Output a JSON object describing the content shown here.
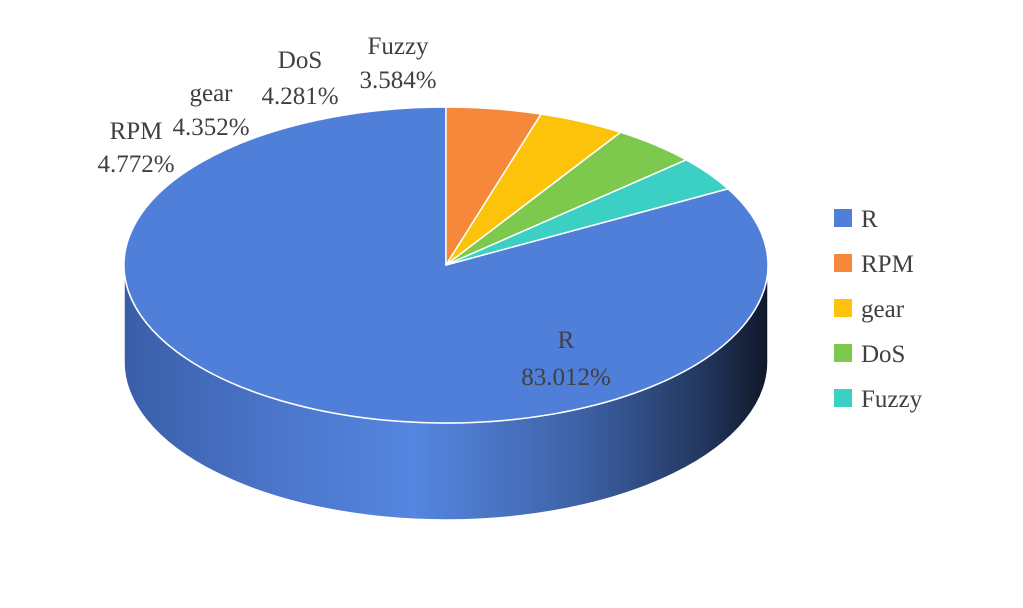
{
  "chart_data": {
    "type": "pie",
    "style": "3d",
    "categories": [
      "R",
      "RPM",
      "gear",
      "DoS",
      "Fuzzy"
    ],
    "values": [
      83.012,
      4.772,
      4.352,
      4.281,
      3.584
    ],
    "value_labels": [
      "83.012%",
      "4.772%",
      "4.352%",
      "4.281%",
      "3.584%"
    ],
    "colors": [
      "#4f7fd9",
      "#f5883a",
      "#fcc30a",
      "#7dc94d",
      "#3ccfc4"
    ],
    "legend": {
      "position": "right",
      "entries": [
        "R",
        "RPM",
        "gear",
        "DoS",
        "Fuzzy"
      ]
    }
  }
}
